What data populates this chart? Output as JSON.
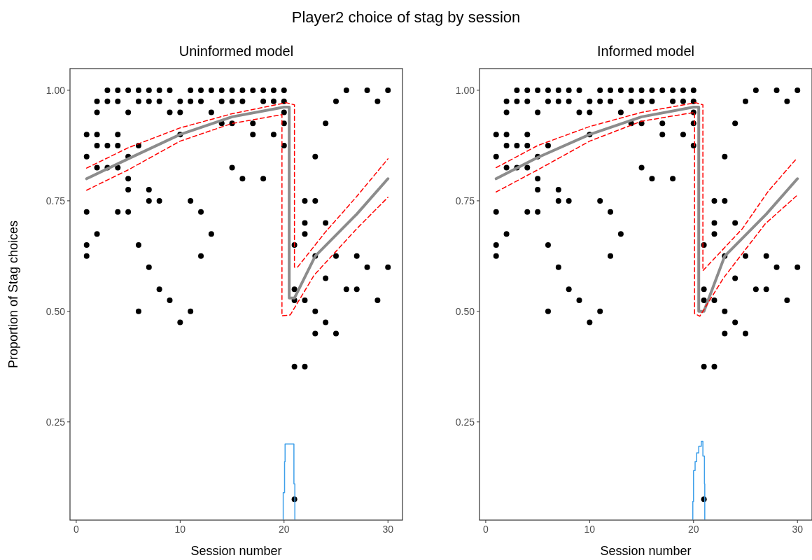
{
  "chart_data": [
    {
      "type": "scatter",
      "title": "Uninformed model",
      "annotations": [
        "Player2 choice of stag by session"
      ],
      "xlabel": "Session number",
      "ylabel": "Proportion of Stag choices",
      "xlim": [
        -0.6,
        31.4
      ],
      "xticks": [
        0,
        10,
        20,
        30
      ],
      "ylim": [
        0.028,
        1.049
      ],
      "yticks": [
        {
          "value": 0.25,
          "label": "0.25"
        },
        {
          "value": 0.5,
          "label": "0.50"
        },
        {
          "value": 0.75,
          "label": "0.75"
        },
        {
          "value": 1,
          "label": "1.00"
        }
      ],
      "grid": false,
      "series": [
        {
          "color": "#000000",
          "marker": "circle",
          "x": [
            1,
            1,
            1,
            1,
            1,
            2,
            2,
            2,
            2,
            2,
            2,
            3,
            3,
            3,
            3,
            4,
            4,
            4,
            4,
            4,
            4,
            5,
            5,
            5,
            5,
            5,
            5,
            6,
            6,
            6,
            6,
            6,
            7,
            7,
            7,
            7,
            7,
            8,
            8,
            8,
            8,
            9,
            9,
            9,
            10,
            10,
            10,
            10,
            11,
            11,
            11,
            11,
            12,
            12,
            12,
            12,
            13,
            13,
            13,
            14,
            14,
            14,
            15,
            15,
            15,
            15,
            16,
            16,
            16,
            17,
            17,
            17,
            18,
            18,
            18,
            19,
            19,
            19,
            20,
            20,
            20,
            20,
            20,
            21,
            21,
            21,
            21,
            21,
            22,
            22,
            22,
            22,
            22,
            23,
            23,
            23,
            23,
            23,
            24,
            24,
            24,
            24,
            25,
            25,
            25,
            26,
            26,
            27,
            27,
            28,
            28,
            29,
            29,
            30,
            30
          ],
          "values": [
            0.9,
            0.85,
            0.725,
            0.65,
            0.625,
            0.975,
            0.95,
            0.9,
            0.875,
            0.825,
            0.675,
            1,
            0.975,
            0.875,
            0.825,
            1,
            0.975,
            0.9,
            0.875,
            0.825,
            0.725,
            1,
            0.95,
            0.85,
            0.8,
            0.775,
            0.725,
            1,
            0.975,
            0.875,
            0.65,
            0.5,
            1,
            0.975,
            0.775,
            0.75,
            0.6,
            1,
            0.975,
            0.75,
            0.55,
            1,
            0.95,
            0.525,
            0.975,
            0.95,
            0.9,
            0.475,
            1,
            0.975,
            0.75,
            0.5,
            1,
            0.975,
            0.725,
            0.625,
            1,
            0.95,
            0.675,
            1,
            0.975,
            0.925,
            1,
            0.975,
            0.925,
            0.825,
            1,
            0.975,
            0.8,
            1,
            0.925,
            0.9,
            1,
            0.975,
            0.8,
            1,
            0.975,
            0.9,
            1,
            0.975,
            0.95,
            0.925,
            0.875,
            0.65,
            0.55,
            0.525,
            0.375,
            0.075,
            0.75,
            0.7,
            0.675,
            0.525,
            0.375,
            0.85,
            0.75,
            0.625,
            0.5,
            0.45,
            0.925,
            0.7,
            0.575,
            0.475,
            0.975,
            0.625,
            0.45,
            1,
            0.55,
            0.625,
            0.55,
            1,
            0.6,
            0.975,
            0.525,
            1,
            0.6
          ]
        },
        {
          "type": "line",
          "color": "#8c8c8c",
          "line_style": "solid",
          "x": [
            1,
            5,
            10,
            15,
            20,
            20.5,
            20.5,
            21,
            23,
            27,
            30
          ],
          "values": [
            0.8,
            0.845,
            0.9,
            0.94,
            0.962,
            0.962,
            0.53,
            0.53,
            0.625,
            0.72,
            0.8
          ]
        },
        {
          "type": "line",
          "color": "#ff0000",
          "line_style": "dashed",
          "x": [
            1,
            5,
            10,
            15,
            19.8,
            19.8,
            20.6,
            22.9,
            27,
            30
          ],
          "values": [
            0.774,
            0.82,
            0.885,
            0.925,
            0.945,
            0.49,
            0.492,
            0.582,
            0.687,
            0.758
          ]
        },
        {
          "type": "line",
          "color": "#ff0000",
          "line_style": "dashed",
          "x": [
            1,
            5,
            10,
            15,
            20.2,
            21,
            21,
            21.3,
            24,
            27,
            30
          ],
          "values": [
            0.824,
            0.87,
            0.915,
            0.947,
            0.972,
            0.967,
            0.6,
            0.6,
            0.68,
            0.76,
            0.845
          ]
        },
        {
          "type": "step",
          "color": "#3fa0ea",
          "line_style": "solid",
          "x": [
            19.92,
            19.92,
            20.05,
            20.1,
            20.95,
            21.04
          ],
          "values": [
            0.03,
            0.09,
            0.16,
            0.2,
            0.11,
            0.03
          ]
        }
      ]
    },
    {
      "type": "scatter",
      "title": "Informed model",
      "xlabel": "Session number",
      "xlim": [
        -0.6,
        31.4
      ],
      "xticks": [
        0,
        10,
        20,
        30
      ],
      "ylim": [
        0.028,
        1.049
      ],
      "yticks": [
        {
          "value": 0.25,
          "label": "0.25"
        },
        {
          "value": 0.5,
          "label": "0.50"
        },
        {
          "value": 0.75,
          "label": "0.75"
        },
        {
          "value": 1,
          "label": "1.00"
        }
      ],
      "grid": false,
      "series": [
        {
          "color": "#000000",
          "marker": "circle",
          "x": [
            1,
            1,
            1,
            1,
            1,
            2,
            2,
            2,
            2,
            2,
            2,
            3,
            3,
            3,
            3,
            4,
            4,
            4,
            4,
            4,
            4,
            5,
            5,
            5,
            5,
            5,
            5,
            6,
            6,
            6,
            6,
            6,
            7,
            7,
            7,
            7,
            7,
            8,
            8,
            8,
            8,
            9,
            9,
            9,
            10,
            10,
            10,
            10,
            11,
            11,
            11,
            11,
            12,
            12,
            12,
            12,
            13,
            13,
            13,
            14,
            14,
            14,
            15,
            15,
            15,
            15,
            16,
            16,
            16,
            17,
            17,
            17,
            18,
            18,
            18,
            19,
            19,
            19,
            20,
            20,
            20,
            20,
            20,
            21,
            21,
            21,
            21,
            21,
            22,
            22,
            22,
            22,
            22,
            23,
            23,
            23,
            23,
            23,
            24,
            24,
            24,
            24,
            25,
            25,
            25,
            26,
            26,
            27,
            27,
            28,
            28,
            29,
            29,
            30,
            30
          ],
          "values": [
            0.9,
            0.85,
            0.725,
            0.65,
            0.625,
            0.975,
            0.95,
            0.9,
            0.875,
            0.825,
            0.675,
            1,
            0.975,
            0.875,
            0.825,
            1,
            0.975,
            0.9,
            0.875,
            0.825,
            0.725,
            1,
            0.95,
            0.85,
            0.8,
            0.775,
            0.725,
            1,
            0.975,
            0.875,
            0.65,
            0.5,
            1,
            0.975,
            0.775,
            0.75,
            0.6,
            1,
            0.975,
            0.75,
            0.55,
            1,
            0.95,
            0.525,
            0.975,
            0.95,
            0.9,
            0.475,
            1,
            0.975,
            0.75,
            0.5,
            1,
            0.975,
            0.725,
            0.625,
            1,
            0.95,
            0.675,
            1,
            0.975,
            0.925,
            1,
            0.975,
            0.925,
            0.825,
            1,
            0.975,
            0.8,
            1,
            0.925,
            0.9,
            1,
            0.975,
            0.8,
            1,
            0.975,
            0.9,
            1,
            0.975,
            0.95,
            0.925,
            0.875,
            0.65,
            0.55,
            0.525,
            0.375,
            0.075,
            0.75,
            0.7,
            0.675,
            0.525,
            0.375,
            0.85,
            0.75,
            0.625,
            0.5,
            0.45,
            0.925,
            0.7,
            0.575,
            0.475,
            0.975,
            0.625,
            0.45,
            1,
            0.55,
            0.625,
            0.55,
            1,
            0.6,
            0.975,
            0.525,
            1,
            0.6
          ]
        },
        {
          "type": "line",
          "color": "#8c8c8c",
          "line_style": "solid",
          "x": [
            1,
            5,
            10,
            15,
            20,
            20.5,
            20.5,
            21,
            23,
            27,
            30
          ],
          "values": [
            0.8,
            0.848,
            0.9,
            0.94,
            0.962,
            0.962,
            0.5,
            0.5,
            0.625,
            0.72,
            0.8
          ]
        },
        {
          "type": "line",
          "color": "#ff0000",
          "line_style": "dashed",
          "x": [
            1,
            5,
            10,
            15,
            20.1,
            20.1,
            20.6,
            22.9,
            26.9,
            29.9
          ],
          "values": [
            0.77,
            0.82,
            0.885,
            0.93,
            0.95,
            0.495,
            0.489,
            0.576,
            0.698,
            0.761
          ]
        },
        {
          "type": "line",
          "color": "#ff0000",
          "line_style": "dashed",
          "x": [
            1,
            5,
            10,
            15,
            20.2,
            20.9,
            20.9,
            24.7,
            27.2,
            29.9
          ],
          "values": [
            0.825,
            0.875,
            0.918,
            0.95,
            0.972,
            0.967,
            0.592,
            0.687,
            0.772,
            0.845
          ]
        },
        {
          "type": "step",
          "color": "#3fa0ea",
          "line_style": "solid",
          "x": [
            19.93,
            19.93,
            20.0,
            20.15,
            20.3,
            20.5,
            20.75,
            20.9,
            21.05,
            21.08
          ],
          "values": [
            0.03,
            0.07,
            0.14,
            0.16,
            0.18,
            0.195,
            0.206,
            0.173,
            0.11,
            0.03
          ]
        }
      ]
    }
  ]
}
